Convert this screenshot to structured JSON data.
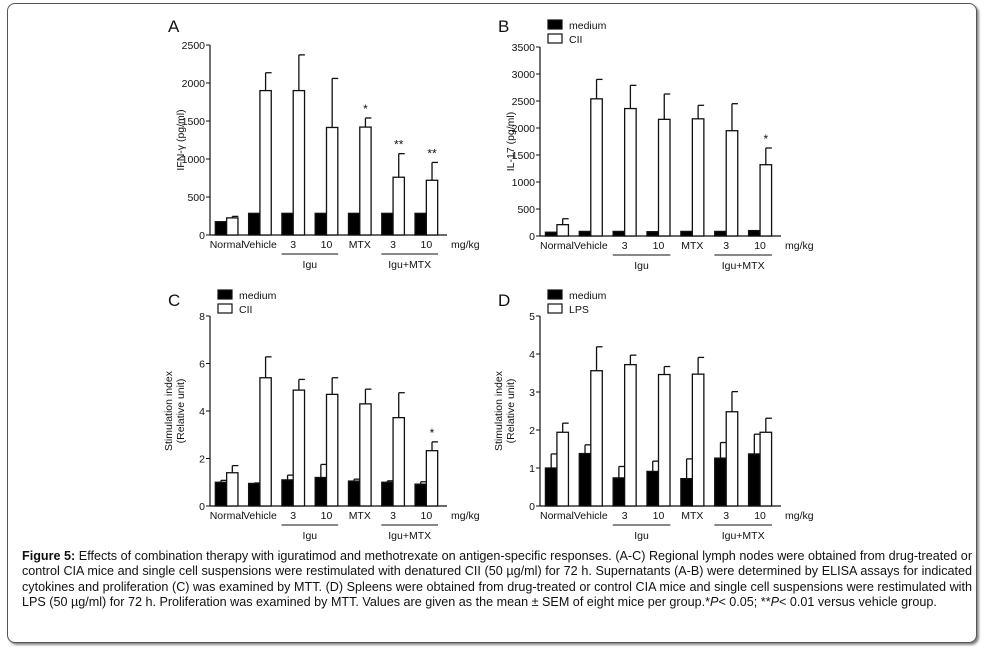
{
  "figure_label": "Figure 5:",
  "caption_parts": [
    {
      "t": "Effects of combination therapy with iguratimod and methotrexate on antigen-specific responses. (A-C) Regional lymph nodes were obtained from drug-treated or control CIA mice and single cell suspensions were restimulated with denatured CII (50 µg/ml) for 72 h. Supernatants (A-B) were determined by ELISA assays for indicated cytokines and proliferation (C) was examined by MTT. (D) Spleens were obtained from drug-treated or control CIA mice and single cell suspensions were restimulated with LPS (50 µg/ml) for 72 h. Proliferation was examined by MTT. Values are given as the mean ± SEM of eight mice per group.*",
      "i": false
    },
    {
      "t": "P",
      "i": true
    },
    {
      "t": "< 0.05; **",
      "i": false
    },
    {
      "t": "P",
      "i": true
    },
    {
      "t": "< 0.01 versus vehicle group.",
      "i": false
    }
  ],
  "chart_data": [
    {
      "type": "bar",
      "panel": "A",
      "ylabel": "IFN-γ (pg/ml)",
      "ylim": [
        0,
        2500
      ],
      "yticks": [
        0,
        500,
        1000,
        1500,
        2000,
        2500
      ],
      "categories": [
        "Normal",
        "Vehicle",
        "3",
        "10",
        "MTX",
        "3",
        "10"
      ],
      "unit_label": "mg/kg",
      "groups": [
        {
          "label": "Igu",
          "from": 2,
          "to": 3
        },
        {
          "label": "Igu+MTX",
          "from": 5,
          "to": 6
        }
      ],
      "legend": null,
      "series": [
        {
          "name": "medium",
          "fill": "#000000",
          "values": [
            175,
            285,
            285,
            285,
            285,
            285,
            285
          ],
          "errors": [
            0,
            0,
            0,
            0,
            0,
            0,
            0
          ]
        },
        {
          "name": "CII",
          "fill": "#ffffff",
          "values": [
            225,
            1900,
            1900,
            1415,
            1420,
            760,
            720
          ],
          "errors": [
            20,
            235,
            470,
            645,
            120,
            310,
            235
          ]
        }
      ],
      "annotations": [
        {
          "series": 1,
          "index": 4,
          "text": "*"
        },
        {
          "series": 1,
          "index": 5,
          "text": "**"
        },
        {
          "series": 1,
          "index": 6,
          "text": "**"
        }
      ]
    },
    {
      "type": "bar",
      "panel": "B",
      "ylabel": "IL-17 (pg/ml)",
      "ylim": [
        0,
        3500
      ],
      "yticks": [
        0,
        500,
        1000,
        1500,
        2000,
        2500,
        3000,
        3500
      ],
      "categories": [
        "Normal",
        "Vehicle",
        "3",
        "10",
        "MTX",
        "3",
        "10"
      ],
      "unit_label": "mg/kg",
      "groups": [
        {
          "label": "Igu",
          "from": 2,
          "to": 3
        },
        {
          "label": "Igu+MTX",
          "from": 5,
          "to": 6
        }
      ],
      "legend": [
        "medium",
        "CII"
      ],
      "series": [
        {
          "name": "medium",
          "fill": "#000000",
          "values": [
            70,
            85,
            85,
            80,
            85,
            85,
            100
          ],
          "errors": [
            0,
            0,
            0,
            0,
            0,
            0,
            0
          ]
        },
        {
          "name": "CII",
          "fill": "#ffffff",
          "values": [
            210,
            2540,
            2360,
            2160,
            2170,
            1950,
            1320
          ],
          "errors": [
            110,
            360,
            430,
            470,
            250,
            500,
            310
          ]
        }
      ],
      "annotations": [
        {
          "series": 1,
          "index": 6,
          "text": "*"
        }
      ]
    },
    {
      "type": "bar",
      "panel": "C",
      "ylabel": "Stimulation index",
      "ylabel2": "(Relative unit)",
      "ylim": [
        0,
        8
      ],
      "yticks": [
        0,
        2,
        4,
        6,
        8
      ],
      "categories": [
        "Normal",
        "Vehicle",
        "3",
        "10",
        "MTX",
        "3",
        "10"
      ],
      "unit_label": "mg/kg",
      "groups": [
        {
          "label": "Igu",
          "from": 2,
          "to": 3
        },
        {
          "label": "Igu+MTX",
          "from": 5,
          "to": 6
        }
      ],
      "legend": [
        "medium",
        "CII"
      ],
      "series": [
        {
          "name": "medium",
          "fill": "#000000",
          "values": [
            1.0,
            0.95,
            1.1,
            1.2,
            1.05,
            1.0,
            0.92
          ],
          "errors": [
            0.08,
            0.02,
            0.2,
            0.55,
            0.08,
            0.06,
            0.1
          ]
        },
        {
          "name": "CII",
          "fill": "#ffffff",
          "values": [
            1.4,
            5.4,
            4.88,
            4.7,
            4.3,
            3.72,
            2.33
          ],
          "errors": [
            0.3,
            0.88,
            0.45,
            0.7,
            0.62,
            1.05,
            0.37
          ]
        }
      ],
      "annotations": [
        {
          "series": 1,
          "index": 6,
          "text": "*"
        }
      ]
    },
    {
      "type": "bar",
      "panel": "D",
      "ylabel": "Stimulation index",
      "ylabel2": "(Relative unit)",
      "ylim": [
        0,
        5
      ],
      "yticks": [
        0,
        1,
        2,
        3,
        4,
        5
      ],
      "categories": [
        "Normal",
        "Vehicle",
        "3",
        "10",
        "MTX",
        "3",
        "10"
      ],
      "unit_label": "mg/kg",
      "groups": [
        {
          "label": "Igu",
          "from": 2,
          "to": 3
        },
        {
          "label": "Igu+MTX",
          "from": 5,
          "to": 6
        }
      ],
      "legend": [
        "medium",
        "LPS"
      ],
      "series": [
        {
          "name": "medium",
          "fill": "#000000",
          "values": [
            1.0,
            1.38,
            0.74,
            0.91,
            0.72,
            1.26,
            1.37
          ],
          "errors": [
            0.37,
            0.23,
            0.3,
            0.27,
            0.52,
            0.41,
            0.52
          ]
        },
        {
          "name": "LPS",
          "fill": "#ffffff",
          "values": [
            1.94,
            3.56,
            3.72,
            3.46,
            3.47,
            2.48,
            1.94
          ],
          "errors": [
            0.24,
            0.63,
            0.25,
            0.21,
            0.44,
            0.53,
            0.37
          ]
        }
      ],
      "annotations": []
    }
  ]
}
